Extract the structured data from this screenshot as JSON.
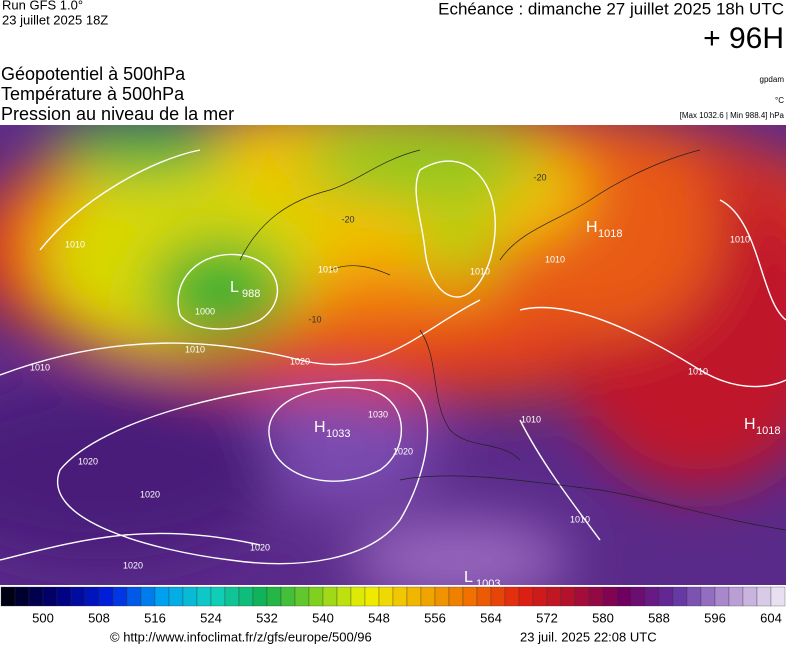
{
  "header": {
    "run": "Run GFS 1.0°",
    "run_date": "23 juillet 2025 18Z",
    "forecast": "Echéance : dimanche 27 juillet 2025 18h UTC",
    "lead": "+ 96H"
  },
  "legend": {
    "lines": [
      "Géopotentiel à 500hPa",
      "Température à 500hPa",
      "Pression au niveau de la mer"
    ],
    "units": [
      "gpdam",
      "°C"
    ],
    "extremes": "[Max 1032.6 | Min 988.4] hPa"
  },
  "map": {
    "centers": [
      {
        "letter": "H",
        "value": 1018
      },
      {
        "letter": "L",
        "value": 988
      },
      {
        "letter": "H",
        "value": 1033
      },
      {
        "letter": "H",
        "value": 1018
      },
      {
        "letter": "L",
        "value": 1003
      }
    ],
    "isobar_labels": [
      1010,
      1000,
      1010,
      1010,
      1020,
      1030,
      1020,
      1020,
      1020,
      1020,
      1020,
      1010,
      1010,
      1010,
      1010,
      1010,
      1010,
      1010
    ],
    "temperature_labels": [
      -20,
      -20,
      -10
    ]
  },
  "colorbar": {
    "labels": [
      500,
      508,
      516,
      524,
      532,
      540,
      548,
      556,
      564,
      572,
      580,
      588,
      596,
      604
    ]
  },
  "footer": {
    "source": "© http://www.infoclimat.fr/z/gfs/europe/500/96",
    "generated": "23 juil. 2025 22:08 UTC"
  }
}
